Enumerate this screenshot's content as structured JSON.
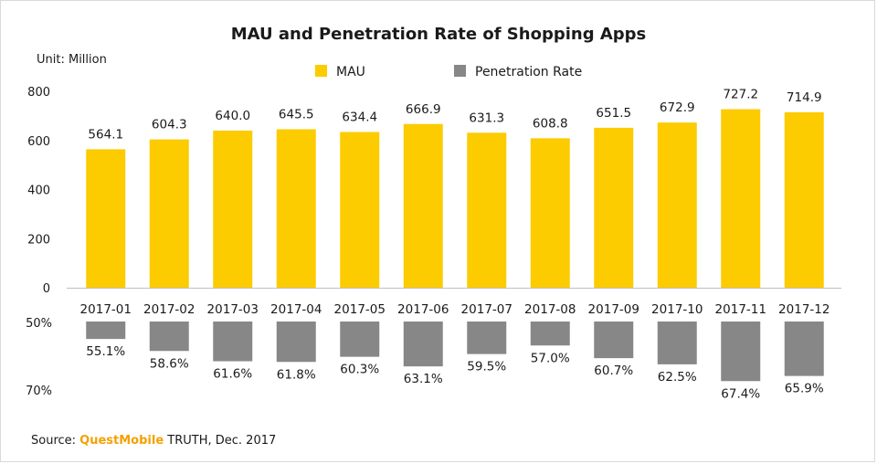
{
  "colors": {
    "mau": "#fccb00",
    "penetration": "#878787",
    "brand": "#f5a000",
    "axis": "#bfbfbf"
  },
  "chart_data": [
    {
      "type": "bar",
      "title": "MAU and Penetration Rate of Shopping Apps",
      "unit_label": "Unit: Million",
      "legend": {
        "position": "top",
        "entries": [
          "MAU",
          "Penetration Rate"
        ]
      },
      "categories": [
        "2017-01",
        "2017-02",
        "2017-03",
        "2017-04",
        "2017-05",
        "2017-06",
        "2017-07",
        "2017-08",
        "2017-09",
        "2017-10",
        "2017-11",
        "2017-12"
      ],
      "series": [
        {
          "name": "MAU",
          "values": [
            564.1,
            604.3,
            640.0,
            645.5,
            634.4,
            666.9,
            631.3,
            608.8,
            651.5,
            672.9,
            727.2,
            714.9
          ],
          "labels": [
            "564.1",
            "604.3",
            "640.0",
            "645.5",
            "634.4",
            "666.9",
            "631.3",
            "608.8",
            "651.5",
            "672.9",
            "727.2",
            "714.9"
          ]
        }
      ],
      "ylim": [
        0,
        800
      ],
      "yticks": [
        "0",
        "200",
        "400",
        "600",
        "800"
      ],
      "grid": false
    },
    {
      "type": "bar",
      "orientation": "downward",
      "series": [
        {
          "name": "Penetration Rate",
          "values": [
            55.1,
            58.6,
            61.6,
            61.8,
            60.3,
            63.1,
            59.5,
            57.0,
            60.7,
            62.5,
            67.4,
            65.9
          ],
          "labels": [
            "55.1%",
            "58.6%",
            "61.6%",
            "61.8%",
            "60.3%",
            "63.1%",
            "59.5%",
            "57.0%",
            "60.7%",
            "62.5%",
            "67.4%",
            "65.9%"
          ]
        }
      ],
      "ylim": [
        50,
        70
      ],
      "yticks": [
        "50%",
        "70%"
      ],
      "grid": false
    }
  ],
  "source": {
    "prefix": "Source: ",
    "brand": "QuestMobile",
    "suffix": " TRUTH, Dec. 2017"
  }
}
